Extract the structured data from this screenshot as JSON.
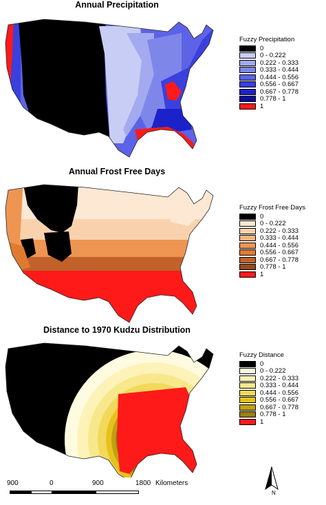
{
  "maps": [
    {
      "title": "Annual Precipitation",
      "legend_title": "Fuzzy Precipitation",
      "classes": [
        {
          "label": "0",
          "color": "#000000"
        },
        {
          "label": "0 - 0.222",
          "color": "#c8cdf5"
        },
        {
          "label": "0.222 - 0.333",
          "color": "#a4aaf0"
        },
        {
          "label": "0.333 - 0.444",
          "color": "#7f86ea"
        },
        {
          "label": "0.444 - 0.556",
          "color": "#5c63e6"
        },
        {
          "label": "0.556 - 0.667",
          "color": "#3a40dd"
        },
        {
          "label": "0.667 - 0.778",
          "color": "#1c22c9"
        },
        {
          "label": "0.778 - 1",
          "color": "#0a0e9c"
        },
        {
          "label": "1",
          "color": "#ff1a1a"
        }
      ]
    },
    {
      "title": "Annual Frost Free Days",
      "legend_title": "Fuzzy Frost Free Days",
      "classes": [
        {
          "label": "0",
          "color": "#000000"
        },
        {
          "label": "0 - 0.222",
          "color": "#fde8d3"
        },
        {
          "label": "0.222 - 0.333",
          "color": "#f9d2ad"
        },
        {
          "label": "0.333 - 0.444",
          "color": "#f5b57f"
        },
        {
          "label": "0.444 - 0.556",
          "color": "#ee9552"
        },
        {
          "label": "0.556 - 0.667",
          "color": "#e07a30"
        },
        {
          "label": "0.667 - 0.778",
          "color": "#c0622a"
        },
        {
          "label": "0.778 - 1",
          "color": "#9a4a1a"
        },
        {
          "label": "1",
          "color": "#ff1a1a"
        }
      ]
    },
    {
      "title": "Distance to 1970 Kudzu Distribution",
      "legend_title": "Fuzzy Distance",
      "classes": [
        {
          "label": "0",
          "color": "#000000"
        },
        {
          "label": "0 - 0.222",
          "color": "#fffbe0"
        },
        {
          "label": "0.222 - 0.333",
          "color": "#fdf3b8"
        },
        {
          "label": "0.333 - 0.444",
          "color": "#f8e88c"
        },
        {
          "label": "0.444 - 0.556",
          "color": "#f2d95c"
        },
        {
          "label": "0.556 - 0.667",
          "color": "#e6c21c"
        },
        {
          "label": "0.667 - 0.778",
          "color": "#c2a012"
        },
        {
          "label": "0.778 - 1",
          "color": "#9a8010"
        },
        {
          "label": "1",
          "color": "#ff1a1a"
        }
      ]
    }
  ],
  "scale": {
    "ticks": [
      "900",
      "0",
      "900",
      "1800"
    ],
    "unit": "Kilometers"
  },
  "north": "N"
}
